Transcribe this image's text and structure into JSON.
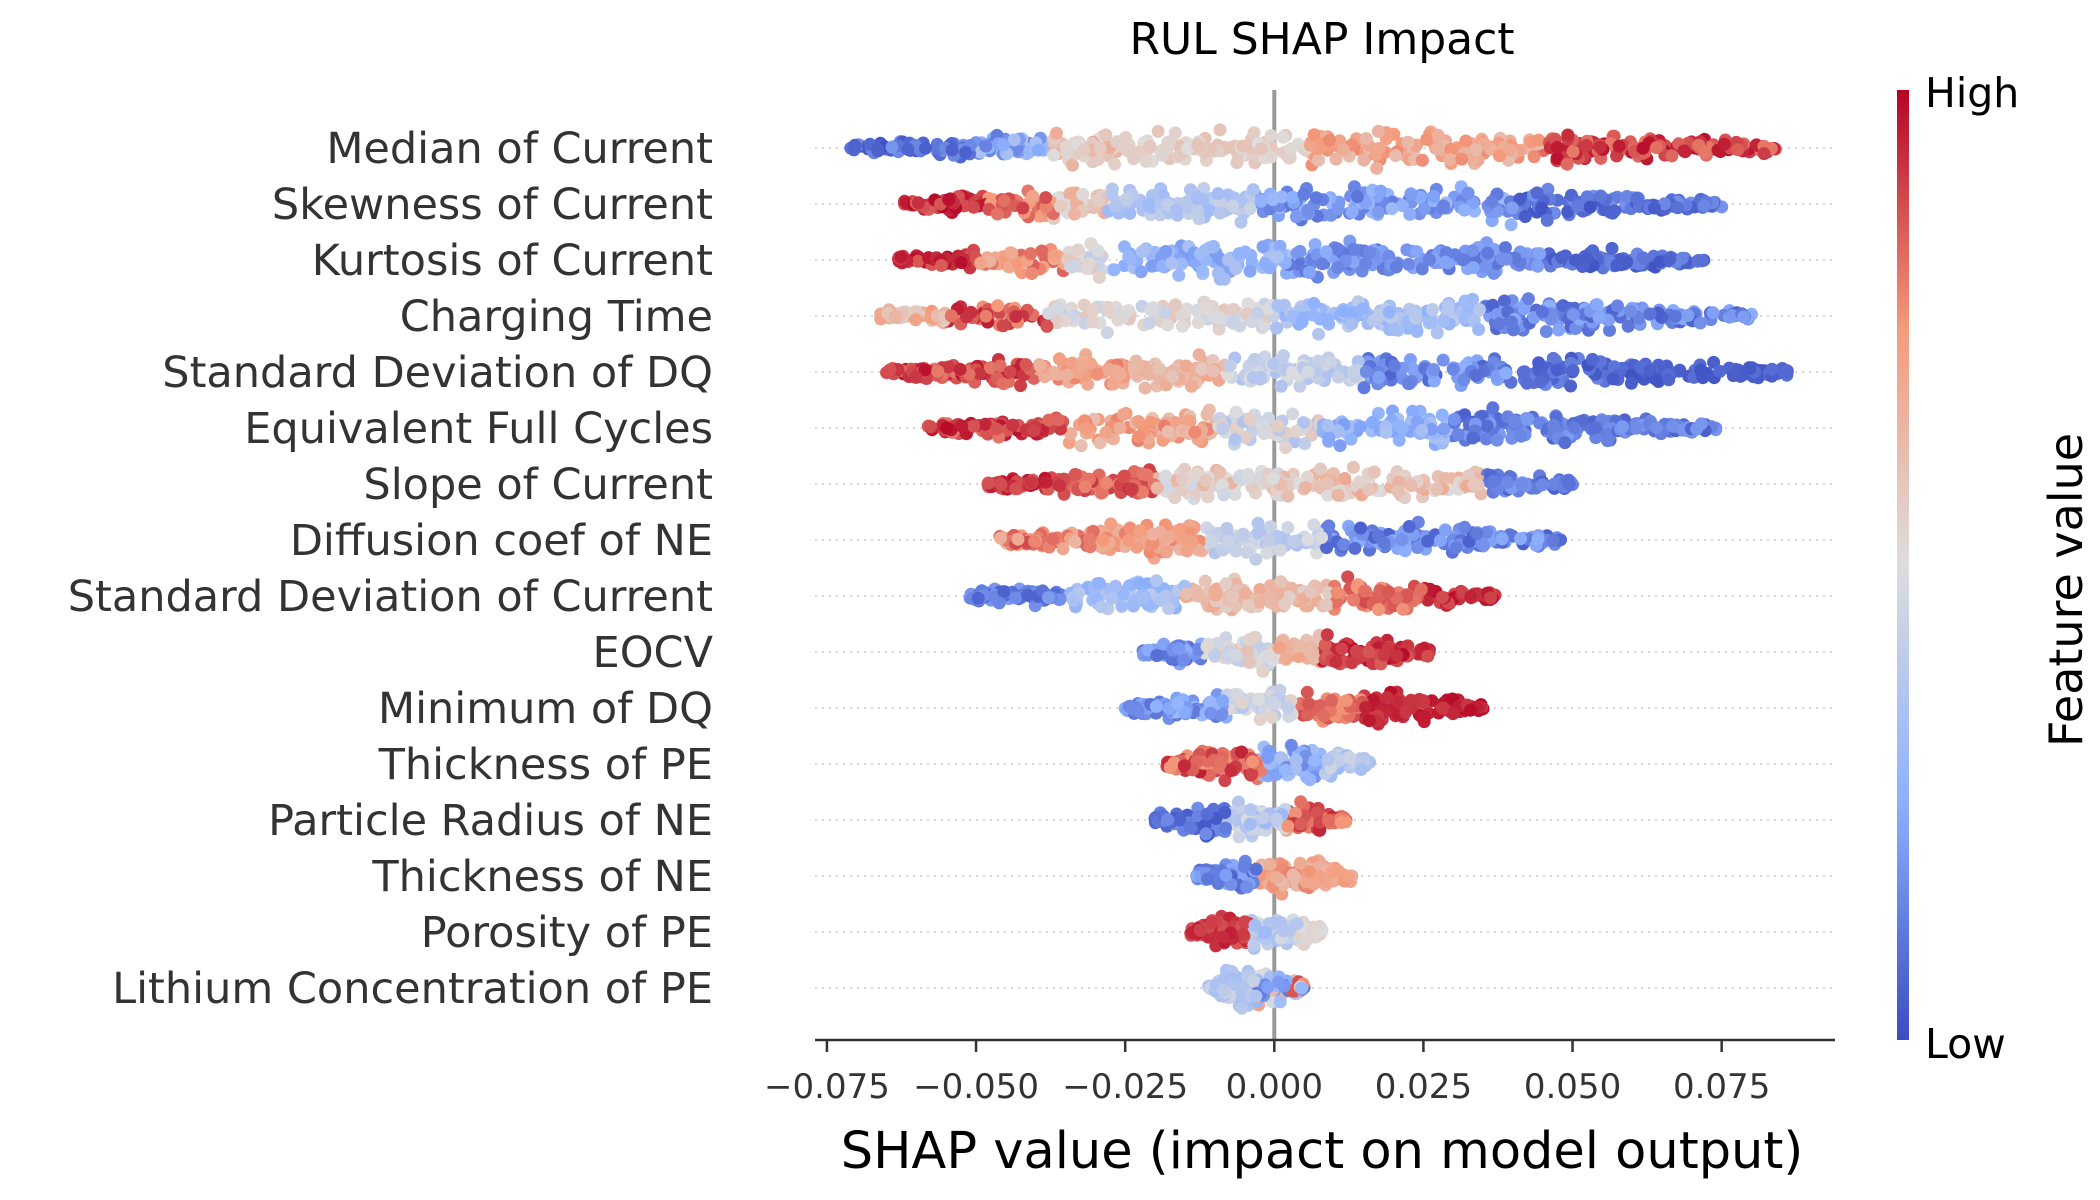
{
  "chart_data": {
    "type": "scatter",
    "subtype": "shap-beeswarm",
    "title": "RUL SHAP Impact",
    "xlabel": "SHAP value (impact on model output)",
    "xlim": [
      -0.077,
      0.094
    ],
    "xticks": [
      -0.075,
      -0.05,
      -0.025,
      0.0,
      0.025,
      0.05,
      0.075
    ],
    "xtick_labels": [
      "−0.075",
      "−0.050",
      "−0.025",
      "0.000",
      "0.025",
      "0.050",
      "0.075"
    ],
    "colorbar": {
      "title": "Feature value",
      "high_label": "High",
      "low_label": "Low",
      "colors": [
        "#3b4cc0",
        "#8db0fe",
        "#dddddd",
        "#f49a7b",
        "#b40426"
      ]
    },
    "zero_line": true,
    "features": [
      {
        "name": "Median of Current",
        "x_min": -0.071,
        "x_max": 0.084,
        "segments": [
          [
            -0.071,
            -0.05,
            0.02,
            0.18
          ],
          [
            -0.05,
            -0.038,
            0.12,
            0.35
          ],
          [
            -0.038,
            -0.026,
            0.5,
            0.7
          ],
          [
            -0.026,
            -0.013,
            0.5,
            0.6
          ],
          [
            0.025,
            0.045,
            0.62,
            0.78
          ],
          [
            0.045,
            0.084,
            0.8,
            0.98
          ]
        ]
      },
      {
        "name": "Skewness of Current",
        "x_min": -0.062,
        "x_max": 0.075,
        "segments": [
          [
            -0.062,
            -0.048,
            0.85,
            0.99
          ],
          [
            -0.048,
            -0.037,
            0.7,
            0.9
          ],
          [
            -0.037,
            -0.028,
            0.5,
            0.7
          ],
          [
            -0.028,
            -0.014,
            0.3,
            0.45
          ],
          [
            0.007,
            0.04,
            0.1,
            0.3
          ],
          [
            0.04,
            0.075,
            0.02,
            0.18
          ]
        ]
      },
      {
        "name": "Kurtosis of Current",
        "x_min": -0.063,
        "x_max": 0.072,
        "segments": [
          [
            -0.063,
            -0.05,
            0.85,
            0.99
          ],
          [
            -0.05,
            -0.035,
            0.65,
            0.85
          ],
          [
            -0.035,
            -0.027,
            0.4,
            0.6
          ],
          [
            -0.027,
            -0.008,
            0.2,
            0.35
          ],
          [
            0.012,
            0.045,
            0.1,
            0.25
          ],
          [
            0.045,
            0.072,
            0.02,
            0.15
          ]
        ]
      },
      {
        "name": "Charging Time",
        "x_min": -0.066,
        "x_max": 0.08,
        "segments": [
          [
            -0.066,
            -0.055,
            0.55,
            0.75
          ],
          [
            -0.055,
            -0.038,
            0.75,
            0.97
          ],
          [
            -0.038,
            0.0,
            0.42,
            0.58
          ],
          [
            0.0,
            0.035,
            0.25,
            0.4
          ],
          [
            0.035,
            0.08,
            0.05,
            0.25
          ]
        ]
      },
      {
        "name": "Standard Deviation of DQ",
        "x_min": -0.065,
        "x_max": 0.086,
        "segments": [
          [
            -0.065,
            -0.04,
            0.8,
            0.98
          ],
          [
            -0.04,
            -0.025,
            0.65,
            0.8
          ],
          [
            -0.025,
            -0.008,
            0.58,
            0.72
          ],
          [
            -0.008,
            0.015,
            0.35,
            0.5
          ],
          [
            0.015,
            0.04,
            0.05,
            0.25
          ],
          [
            0.04,
            0.058,
            0.02,
            0.15
          ],
          [
            0.064,
            0.086,
            0.02,
            0.1
          ]
        ]
      },
      {
        "name": "Equivalent Full Cycles",
        "x_min": -0.058,
        "x_max": 0.074,
        "segments": [
          [
            -0.058,
            -0.035,
            0.8,
            0.99
          ],
          [
            -0.035,
            -0.01,
            0.6,
            0.8
          ],
          [
            -0.01,
            0.008,
            0.35,
            0.6
          ],
          [
            0.008,
            0.03,
            0.2,
            0.35
          ],
          [
            0.03,
            0.074,
            0.05,
            0.2
          ]
        ]
      },
      {
        "name": "Slope of Current",
        "x_min": -0.048,
        "x_max": 0.05,
        "segments": [
          [
            -0.048,
            -0.035,
            0.85,
            0.99
          ],
          [
            -0.035,
            -0.02,
            0.78,
            0.92
          ],
          [
            -0.02,
            0.005,
            0.45,
            0.65
          ],
          [
            0.005,
            0.035,
            0.5,
            0.7
          ],
          [
            0.035,
            0.05,
            0.05,
            0.2
          ]
        ]
      },
      {
        "name": "Diffusion coef of NE",
        "x_min": -0.046,
        "x_max": 0.048,
        "segments": [
          [
            -0.046,
            -0.03,
            0.65,
            0.9
          ],
          [
            -0.03,
            -0.012,
            0.65,
            0.8
          ],
          [
            -0.012,
            0.008,
            0.35,
            0.5
          ],
          [
            0.008,
            0.048,
            0.05,
            0.25
          ]
        ]
      },
      {
        "name": "Standard Deviation of Current",
        "x_min": -0.051,
        "x_max": 0.037,
        "segments": [
          [
            -0.051,
            -0.035,
            0.05,
            0.2
          ],
          [
            -0.035,
            -0.015,
            0.25,
            0.4
          ],
          [
            -0.015,
            0.01,
            0.55,
            0.7
          ],
          [
            0.01,
            0.025,
            0.75,
            0.88
          ],
          [
            0.025,
            0.037,
            0.88,
            0.99
          ]
        ]
      },
      {
        "name": "EOCV",
        "x_min": -0.022,
        "x_max": 0.026,
        "segments": [
          [
            -0.022,
            -0.012,
            0.08,
            0.25
          ],
          [
            -0.012,
            0.0,
            0.4,
            0.6
          ],
          [
            0.0,
            0.008,
            0.6,
            0.72
          ],
          [
            0.008,
            0.026,
            0.85,
            0.99
          ]
        ]
      },
      {
        "name": "Minimum of DQ",
        "x_min": -0.025,
        "x_max": 0.035,
        "segments": [
          [
            -0.025,
            -0.008,
            0.1,
            0.3
          ],
          [
            -0.008,
            0.004,
            0.35,
            0.55
          ],
          [
            0.004,
            0.015,
            0.75,
            0.88
          ],
          [
            0.015,
            0.035,
            0.9,
            0.99
          ]
        ]
      },
      {
        "name": "Thickness of PE",
        "x_min": -0.018,
        "x_max": 0.016,
        "segments": [
          [
            -0.018,
            -0.002,
            0.75,
            0.97
          ],
          [
            -0.002,
            0.008,
            0.15,
            0.35
          ],
          [
            0.008,
            0.016,
            0.3,
            0.45
          ]
        ]
      },
      {
        "name": "Particle Radius of NE",
        "x_min": -0.02,
        "x_max": 0.012,
        "segments": [
          [
            -0.02,
            -0.008,
            0.02,
            0.18
          ],
          [
            -0.008,
            0.002,
            0.3,
            0.5
          ],
          [
            0.002,
            0.012,
            0.75,
            0.95
          ]
        ]
      },
      {
        "name": "Thickness of NE",
        "x_min": -0.013,
        "x_max": 0.013,
        "segments": [
          [
            -0.013,
            -0.003,
            0.05,
            0.25
          ],
          [
            -0.003,
            0.006,
            0.6,
            0.8
          ],
          [
            0.006,
            0.013,
            0.65,
            0.75
          ]
        ]
      },
      {
        "name": "Porosity of PE",
        "x_min": -0.014,
        "x_max": 0.008,
        "segments": [
          [
            -0.014,
            -0.004,
            0.85,
            0.97
          ],
          [
            -0.004,
            0.004,
            0.3,
            0.5
          ],
          [
            0.004,
            0.008,
            0.48,
            0.55
          ]
        ]
      },
      {
        "name": "Lithium Concentration of PE",
        "x_min": -0.011,
        "x_max": 0.005,
        "segments": [
          [
            -0.011,
            -0.003,
            0.3,
            0.45
          ],
          [
            -0.003,
            0.005,
            0.1,
            0.9
          ]
        ]
      }
    ]
  }
}
